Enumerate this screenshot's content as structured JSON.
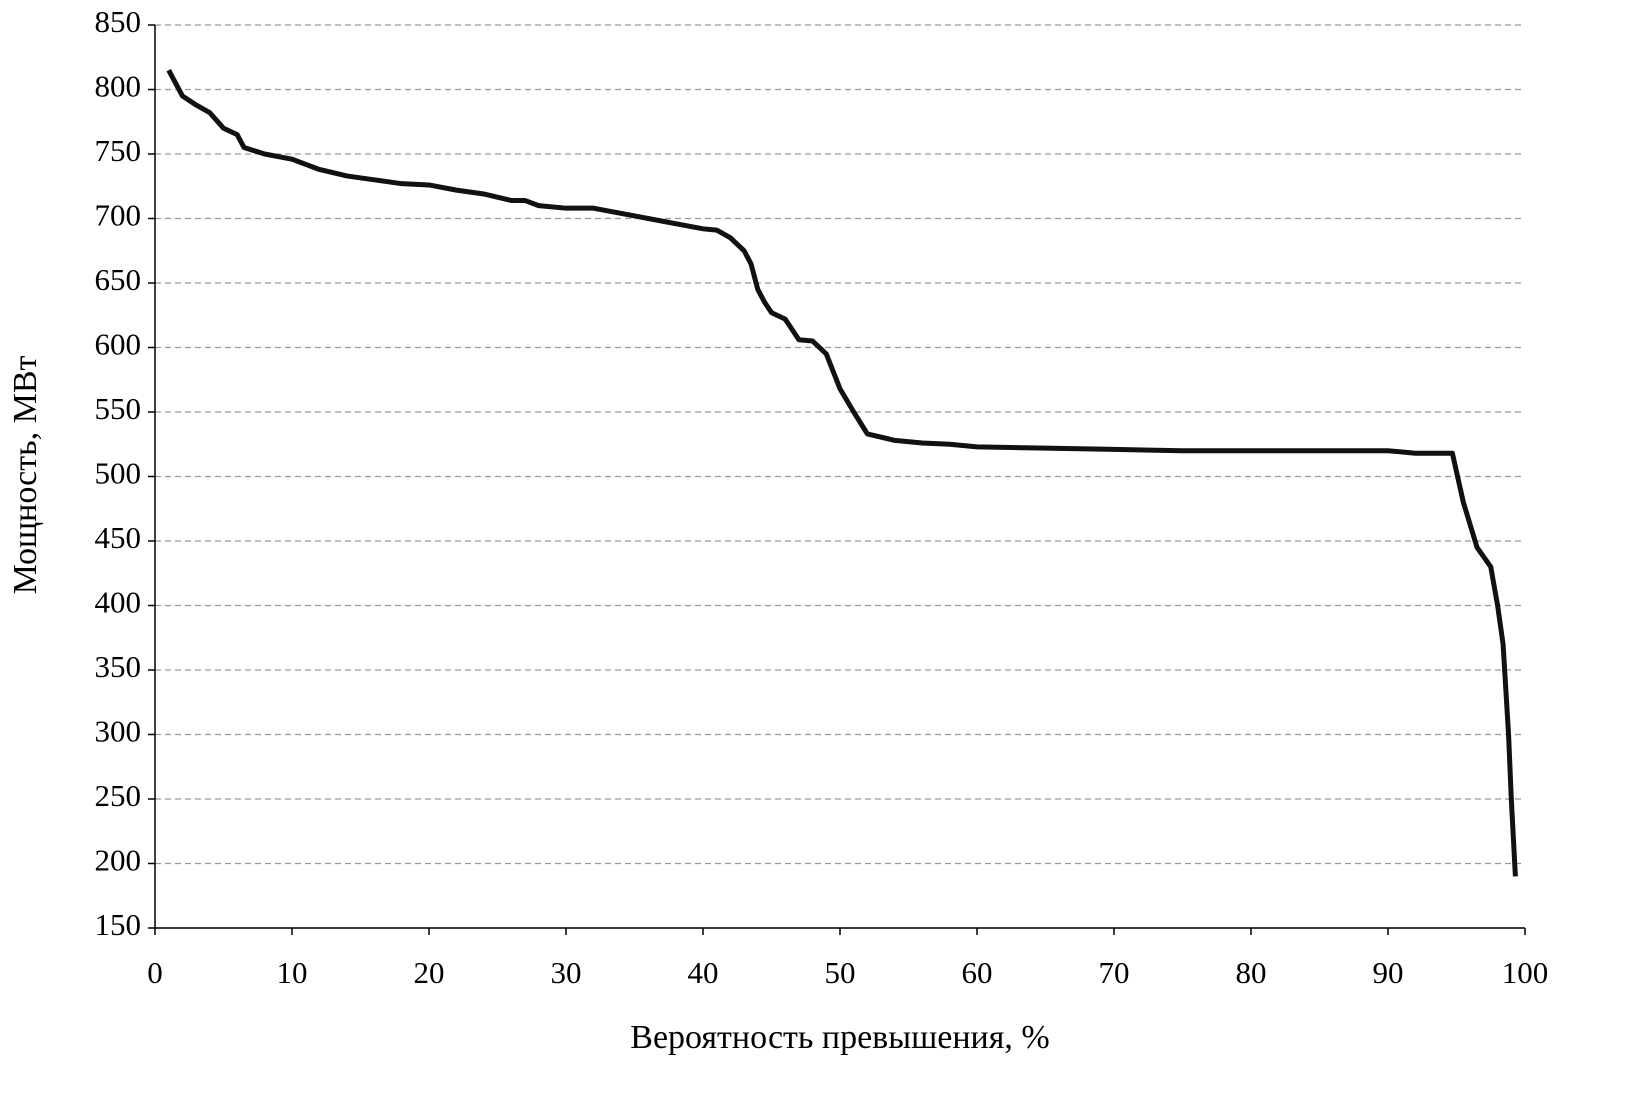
{
  "chart_data": {
    "type": "line",
    "x_label": "Вероятность превышения, %",
    "y_label": "Мощность, МВт",
    "xlim": [
      0,
      100
    ],
    "xticks": [
      0,
      10,
      20,
      30,
      40,
      50,
      60,
      70,
      80,
      90,
      100
    ],
    "ylim": [
      150,
      850
    ],
    "yticks": [
      150,
      200,
      250,
      300,
      350,
      400,
      450,
      500,
      550,
      600,
      650,
      700,
      750,
      800,
      850
    ],
    "grid": true,
    "series": [
      {
        "color": "#111111",
        "x": [
          1,
          2,
          3,
          4,
          5,
          6,
          6.5,
          8,
          10,
          12,
          14,
          16,
          18,
          20,
          22,
          24,
          26,
          27,
          28,
          30,
          32,
          34,
          36,
          38,
          40,
          41,
          42,
          43,
          43.5,
          44,
          44.5,
          45,
          46,
          47,
          48,
          49,
          50,
          51,
          52,
          54,
          56,
          58,
          60,
          65,
          70,
          75,
          80,
          85,
          90,
          92,
          94.7,
          95.5,
          96.5,
          97.5,
          98,
          98.4,
          98.8,
          99,
          99.3
        ],
        "values": [
          815,
          795,
          788,
          782,
          770,
          765,
          755,
          750,
          746,
          738,
          733,
          730,
          727,
          726,
          722,
          719,
          714,
          714,
          710,
          708,
          708,
          704,
          700,
          696,
          692,
          691,
          685,
          675,
          665,
          645,
          635,
          627,
          622,
          606,
          605,
          595,
          568,
          550,
          533,
          528,
          526,
          525,
          523,
          522,
          521,
          520,
          520,
          520,
          520,
          518,
          518,
          480,
          445,
          430,
          400,
          370,
          300,
          250,
          190
        ]
      }
    ]
  }
}
